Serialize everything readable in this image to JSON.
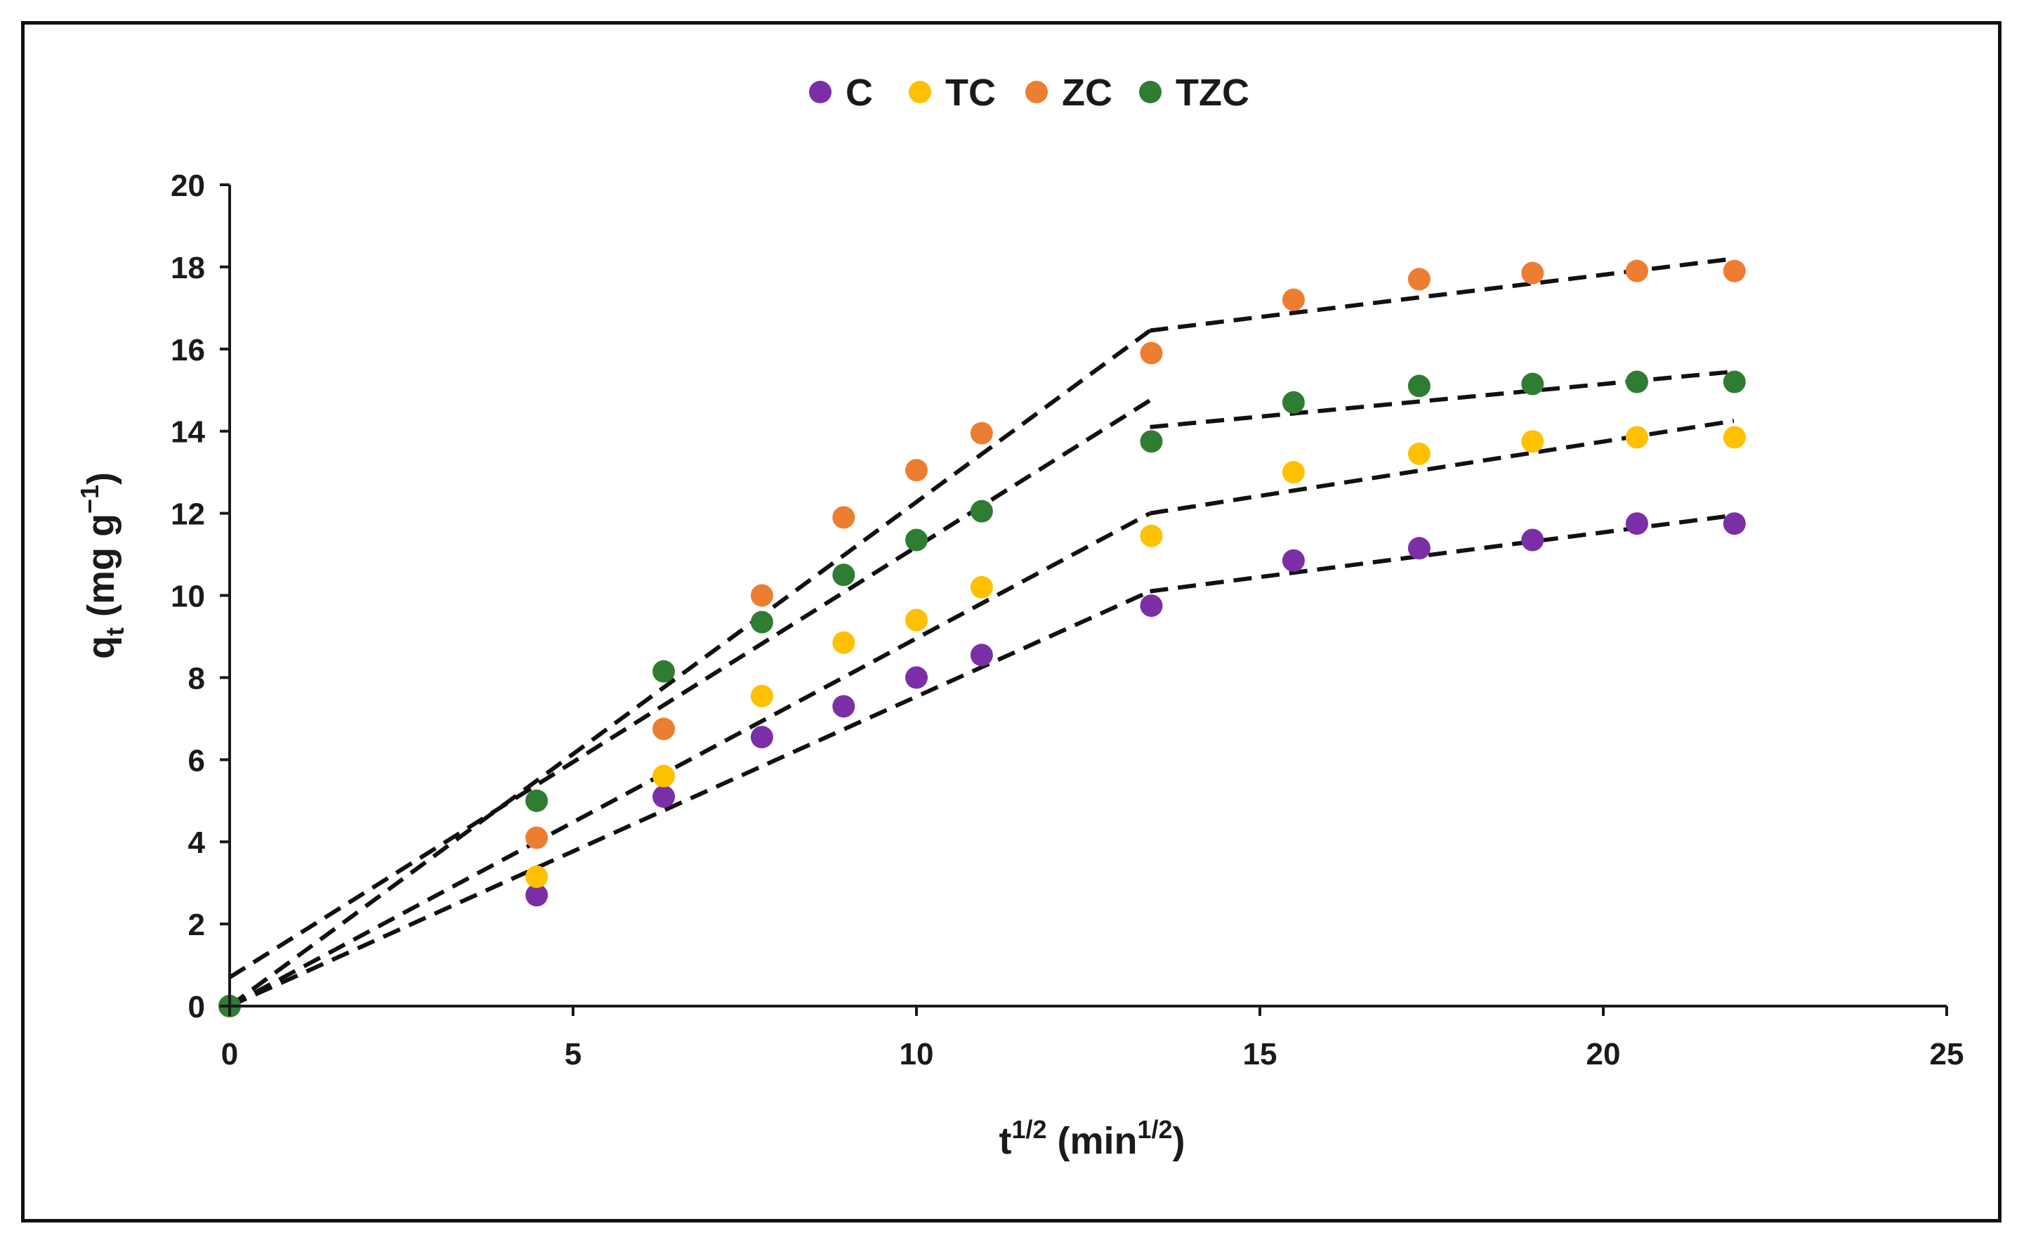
{
  "chart_data": {
    "type": "scatter",
    "title": "",
    "xlabel": "t",
    "xlabel_sup": "1/2",
    "xlabel_unit_open": " (min",
    "xlabel_unit_sup": "1/2",
    "xlabel_unit_close": ")",
    "ylabel": "q",
    "ylabel_sub": "t",
    "ylabel_unit_open": " (mg g",
    "ylabel_unit_sup": "−1",
    "ylabel_unit_close": ")",
    "xlim": [
      0,
      25
    ],
    "ylim": [
      0,
      20
    ],
    "xticks": [
      0,
      5,
      10,
      15,
      20,
      25
    ],
    "yticks": [
      0,
      2,
      4,
      6,
      8,
      10,
      12,
      14,
      16,
      18,
      20
    ],
    "grid": false,
    "legend_position": "top-center",
    "x": [
      0,
      4.47,
      6.32,
      7.75,
      8.94,
      10.0,
      10.95,
      13.42,
      15.49,
      17.32,
      18.97,
      20.49,
      21.91
    ],
    "series": [
      {
        "name": "C",
        "color": "#7b2fa6",
        "values": [
          0,
          2.7,
          5.1,
          6.55,
          7.3,
          8.0,
          8.55,
          9.75,
          10.85,
          11.15,
          11.35,
          11.75,
          11.75
        ],
        "fit_lines": [
          [
            [
              0,
              0
            ],
            [
              13.4,
              10.1
            ]
          ],
          [
            [
              13.4,
              10.1
            ],
            [
              21.9,
              11.95
            ]
          ]
        ]
      },
      {
        "name": "TC",
        "color": "#ffc000",
        "values": [
          0,
          3.15,
          5.6,
          7.55,
          8.85,
          9.4,
          10.2,
          11.45,
          13.0,
          13.45,
          13.75,
          13.85,
          13.85
        ],
        "fit_lines": [
          [
            [
              0,
              0
            ],
            [
              13.4,
              12.0
            ]
          ],
          [
            [
              13.4,
              12.0
            ],
            [
              21.9,
              14.25
            ]
          ]
        ]
      },
      {
        "name": "ZC",
        "color": "#ed7d31",
        "values": [
          0,
          4.1,
          6.75,
          10.0,
          11.9,
          13.05,
          13.95,
          15.9,
          17.2,
          17.7,
          17.85,
          17.9,
          17.9
        ],
        "fit_lines": [
          [
            [
              0,
              0
            ],
            [
              13.4,
              16.45
            ]
          ],
          [
            [
              13.4,
              16.45
            ],
            [
              21.9,
              18.2
            ]
          ]
        ]
      },
      {
        "name": "TZC",
        "color": "#2e7d32",
        "values": [
          0,
          5.0,
          8.15,
          9.35,
          10.5,
          11.35,
          12.05,
          13.75,
          14.7,
          15.1,
          15.15,
          15.2,
          15.2
        ],
        "fit_lines": [
          [
            [
              0,
              0.7
            ],
            [
              13.4,
              14.75
            ]
          ],
          [
            [
              13.4,
              14.1
            ],
            [
              21.9,
              15.45
            ]
          ]
        ]
      }
    ]
  }
}
